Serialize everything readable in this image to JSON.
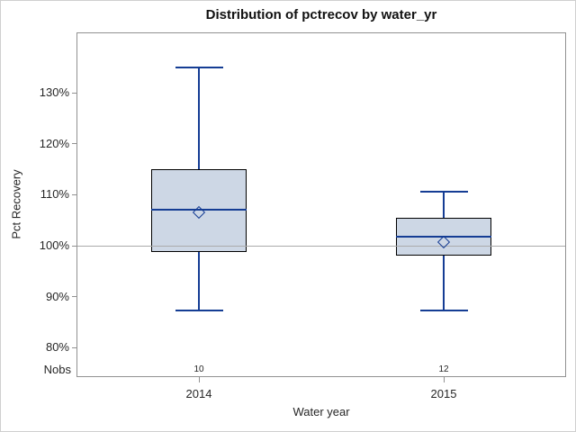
{
  "chart_data": {
    "type": "boxplot",
    "title": "Distribution of pctrecov by water_yr",
    "xlabel": "Water year",
    "ylabel": "Pct Recovery",
    "categories": [
      "2014",
      "2015"
    ],
    "yticks": [
      130,
      120,
      110,
      100,
      90,
      80
    ],
    "ytick_suffix": "%",
    "ylim": [
      74.2,
      141.9
    ],
    "refline_y": 100,
    "grid": "off",
    "legend": "none",
    "nobs_row": {
      "label": "Nobs",
      "values": [
        "10",
        "12"
      ]
    },
    "series": [
      {
        "category": "2014",
        "whisker_low": 87.3,
        "q1": 98.7,
        "median": 107.1,
        "q3": 115.0,
        "whisker_high": 135.0,
        "mean": 106.5,
        "nobs": 10
      },
      {
        "category": "2015",
        "whisker_low": 87.2,
        "q1": 98.0,
        "median": 101.8,
        "q3": 105.5,
        "whisker_high": 110.6,
        "mean": 100.8,
        "nobs": 12
      }
    ],
    "colors": {
      "box_fill": "#cdd7e5",
      "box_border": "#000000",
      "blue_line": "#153d94",
      "reference_line": "#ababab",
      "axis_line": "#919191"
    }
  }
}
